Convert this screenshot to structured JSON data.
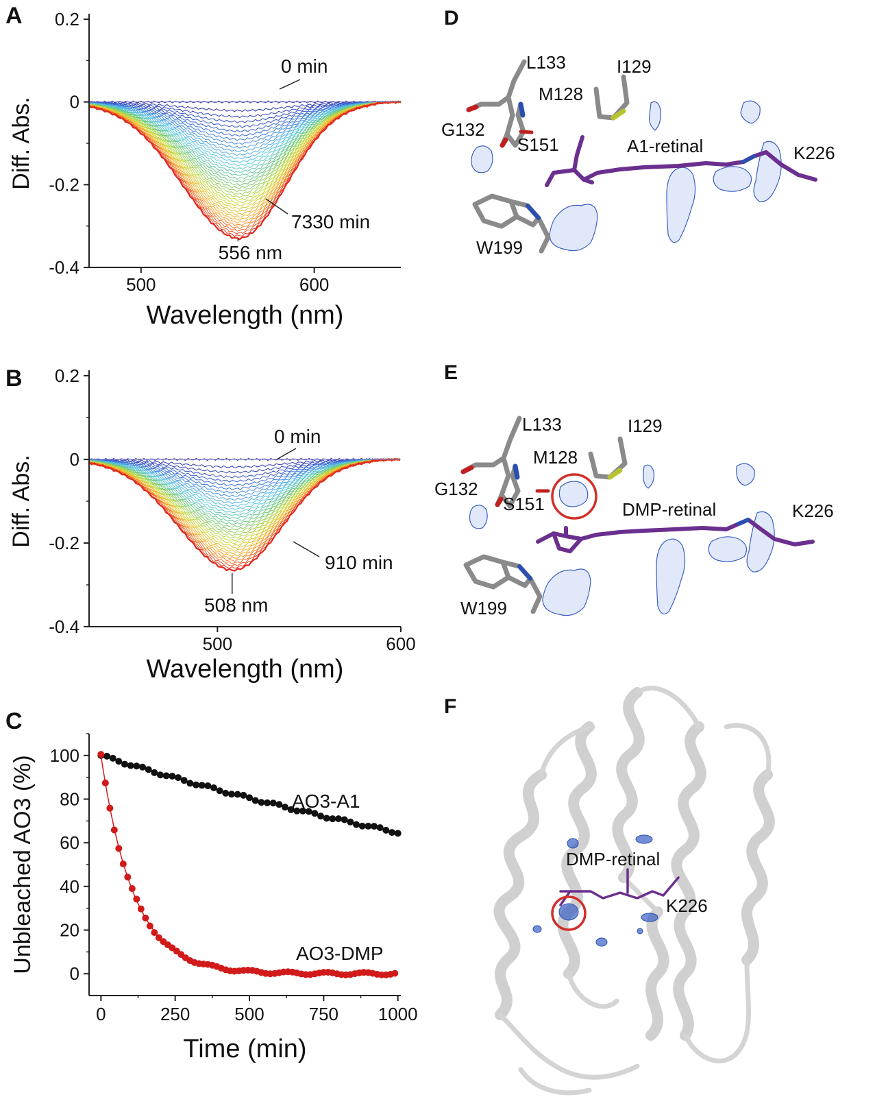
{
  "panels": {
    "A": {
      "letter": "A"
    },
    "B": {
      "letter": "B"
    },
    "C": {
      "letter": "C"
    },
    "D": {
      "letter": "D",
      "labels": {
        "l133": "L133",
        "i129": "I129",
        "m128": "M128",
        "g132": "G132",
        "s151": "S151",
        "retinal": "A1-retinal",
        "k226": "K226",
        "w199": "W199"
      }
    },
    "E": {
      "letter": "E",
      "labels": {
        "l133": "L133",
        "i129": "I129",
        "m128": "M128",
        "g132": "G132",
        "s151": "S151",
        "retinal": "DMP-retinal",
        "k226": "K226",
        "w199": "W199"
      }
    },
    "F": {
      "letter": "F",
      "labels": {
        "retinal": "DMP-retinal",
        "k226": "K226"
      }
    }
  },
  "colors": {
    "axis": "#222222",
    "series_black": "#111111",
    "series_red": "#d11a1a",
    "mesh": "#3a5fc4",
    "retinal": "#6b2f8f",
    "stick": "#8a8a8a",
    "highlight_circle": "#d0302a"
  },
  "chart_data": [
    {
      "panel": "A",
      "type": "line",
      "xlabel": "Wavelength (nm)",
      "ylabel": "Diff. Abs.",
      "xlim": [
        470,
        650
      ],
      "ylim": [
        -0.4,
        0.2
      ],
      "xticks": [
        500,
        600
      ],
      "yticks": [
        0.2,
        0,
        -0.2,
        -0.4
      ],
      "ytick_labels": [
        "0.2",
        "0",
        "-0.2",
        "-0.4"
      ],
      "peak_nm": 556,
      "min_value": -0.33,
      "curve_count": 40,
      "color_scale": "blue-to-red",
      "annotations": [
        {
          "text": "0 min"
        },
        {
          "text": "7330 min"
        },
        {
          "text": "556 nm"
        }
      ]
    },
    {
      "panel": "B",
      "type": "line",
      "xlabel": "Wavelength (nm)",
      "ylabel": "Diff. Abs.",
      "xlim": [
        430,
        600
      ],
      "ylim": [
        -0.4,
        0.2
      ],
      "xticks": [
        500,
        600
      ],
      "yticks": [
        0.2,
        0,
        -0.2,
        -0.4
      ],
      "ytick_labels": [
        "0.2",
        "0",
        "-0.2",
        "-0.4"
      ],
      "peak_nm": 508,
      "min_value": -0.265,
      "curve_count": 36,
      "color_scale": "blue-to-red",
      "annotations": [
        {
          "text": "0 min"
        },
        {
          "text": "910 min"
        },
        {
          "text": "508 nm"
        }
      ]
    },
    {
      "panel": "C",
      "type": "scatter",
      "xlabel": "Time (min)",
      "ylabel": "Unbleached AO3 (%)",
      "xlim": [
        -40,
        1010
      ],
      "ylim": [
        -10,
        110
      ],
      "xticks": [
        0,
        250,
        500,
        750,
        1000
      ],
      "yticks": [
        0,
        20,
        40,
        60,
        80,
        100
      ],
      "series": [
        {
          "name": "AO3-A1",
          "color": "black",
          "model": "exponential",
          "y0": 100,
          "tau_min": 2300,
          "point_step_min": 20
        },
        {
          "name": "AO3-DMP",
          "color": "red",
          "model": "exponential",
          "y0": 100,
          "tau_min": 110,
          "point_step_min": 15
        }
      ]
    }
  ]
}
